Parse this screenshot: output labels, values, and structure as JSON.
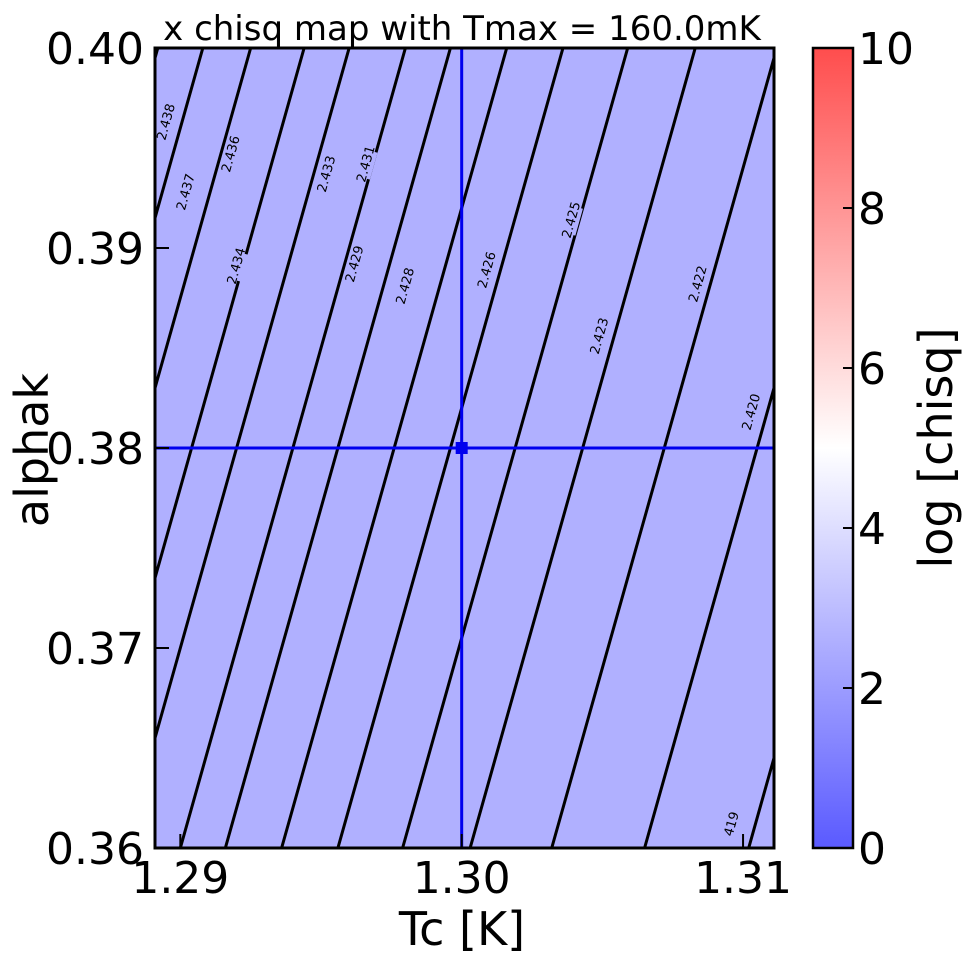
{
  "chart_data": {
    "type": "heatmap",
    "title": "x chisq map with Tmax = 160.0mK",
    "xlabel": "Tc [K]",
    "ylabel": "alphak",
    "xlim": [
      1.2891,
      1.3111
    ],
    "ylim": [
      0.36,
      0.4
    ],
    "x_ticks": [
      {
        "value": 1.29,
        "label": "1.29"
      },
      {
        "value": 1.3,
        "label": "1.30"
      },
      {
        "value": 1.31,
        "label": "1.31"
      }
    ],
    "y_ticks": [
      {
        "value": 0.36,
        "label": "0.36"
      },
      {
        "value": 0.37,
        "label": "0.37"
      },
      {
        "value": 0.38,
        "label": "0.38"
      },
      {
        "value": 0.39,
        "label": "0.39"
      },
      {
        "value": 0.4,
        "label": "0.40"
      }
    ],
    "fill_color": "#b0b0ff",
    "line_color": "#0000ee",
    "contour_slope_dx_per_dy": 0.2,
    "contours": [
      {
        "x_at_bottom": 1.2812,
        "label": "2.438",
        "label_at": [
          1.2895,
          0.3963
        ]
      },
      {
        "x_at_bottom": 1.2828,
        "label": "2.437",
        "label_at": [
          1.2902,
          0.3928
        ]
      },
      {
        "x_at_bottom": 1.2845,
        "label": "2.436",
        "label_at": [
          1.2918,
          0.3947
        ]
      },
      {
        "x_at_bottom": 1.2864,
        "label": "2.434",
        "label_at": [
          1.292,
          0.3891
        ]
      },
      {
        "x_at_bottom": 1.288,
        "label": "2.433",
        "label_at": [
          1.2952,
          0.3937
        ]
      },
      {
        "x_at_bottom": 1.29,
        "label": "2.431",
        "label_at": [
          1.2966,
          0.3942
        ]
      },
      {
        "x_at_bottom": 1.2916,
        "label": "2.429",
        "label_at": [
          1.2962,
          0.3892
        ]
      },
      {
        "x_at_bottom": 1.2936,
        "label": "2.428",
        "label_at": [
          1.298,
          0.3881
        ]
      },
      {
        "x_at_bottom": 1.2956,
        "label": "2.426",
        "label_at": [
          1.3009,
          0.3889
        ]
      },
      {
        "x_at_bottom": 1.2979,
        "label": "2.425",
        "label_at": [
          1.3039,
          0.3914
        ]
      },
      {
        "x_at_bottom": 1.3003,
        "label": "2.423",
        "label_at": [
          1.3049,
          0.3856
        ]
      },
      {
        "x_at_bottom": 1.3032,
        "label": "2.422",
        "label_at": [
          1.3084,
          0.3882
        ]
      },
      {
        "x_at_bottom": 1.3065,
        "label": "2.420",
        "label_at": [
          1.3103,
          0.3818
        ]
      },
      {
        "x_at_bottom": 1.3102,
        "label": "419",
        "label_at": [
          1.3096,
          0.3612
        ]
      }
    ],
    "crosshair": {
      "x": 1.3,
      "y": 0.38
    },
    "colorbar": {
      "label": "log [chisq]",
      "range": [
        0,
        10
      ],
      "ticks": [
        {
          "value": 0,
          "label": "0"
        },
        {
          "value": 2,
          "label": "2"
        },
        {
          "value": 4,
          "label": "4"
        },
        {
          "value": 6,
          "label": "6"
        },
        {
          "value": 8,
          "label": "8"
        },
        {
          "value": 10,
          "label": "10"
        }
      ],
      "colors": [
        "#5a5aff",
        "#ffffff",
        "#ff4d4d"
      ]
    }
  }
}
